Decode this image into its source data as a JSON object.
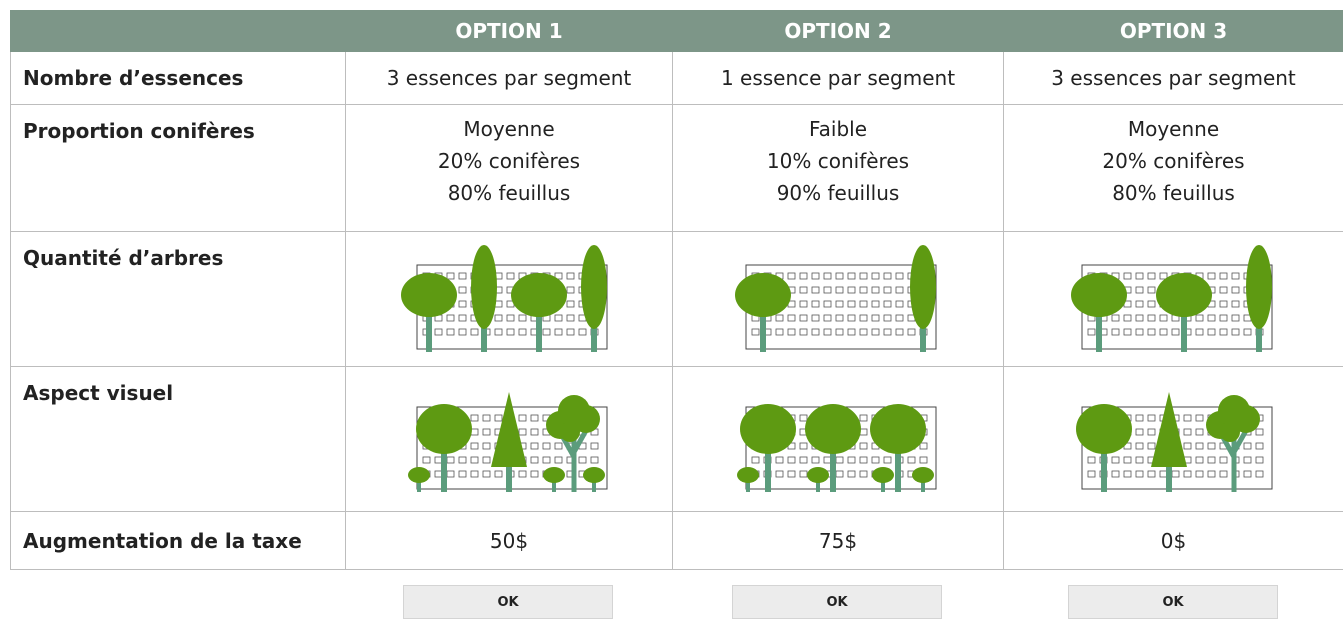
{
  "table": {
    "header": [
      "OPTION 1",
      "OPTION 2",
      "OPTION 3"
    ],
    "rows": [
      {
        "label": "Nombre d’essences",
        "cells": [
          "3 essences par segment",
          "1 essence par segment",
          "3 essences par segment"
        ]
      },
      {
        "label": "Proportion conifères",
        "cells": [
          [
            "Moyenne",
            "20% conifères",
            "80% feuillus"
          ],
          [
            "Faible",
            "10% conifères",
            "90% feuillus"
          ],
          [
            "Moyenne",
            "20% conifères",
            "80% feuillus"
          ]
        ]
      },
      {
        "label": "Quantité d’arbres"
      },
      {
        "label": "Aspect visuel"
      },
      {
        "label": "Augmentation de la taxe",
        "cells": [
          "50$",
          "75$",
          "0$"
        ]
      }
    ]
  },
  "buttons": [
    "OK",
    "OK",
    "OK"
  ]
}
